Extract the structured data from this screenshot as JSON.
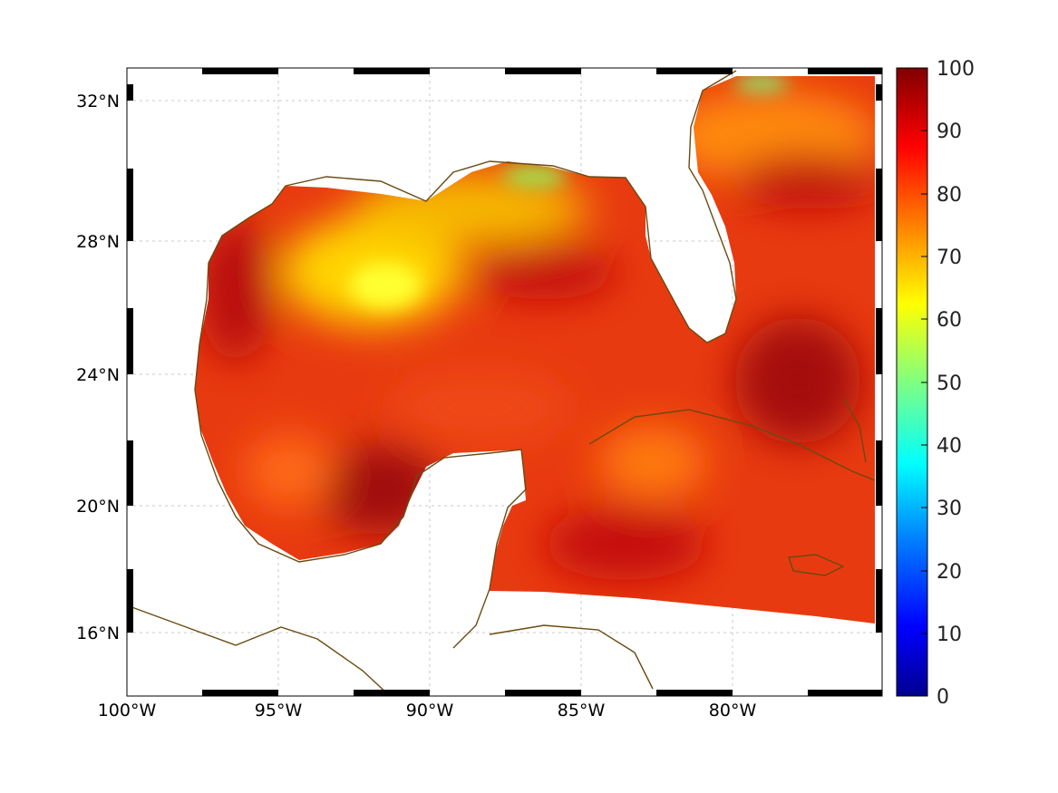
{
  "map": {
    "x_tick_labels": [
      "100°W",
      "95°W",
      "90°W",
      "85°W",
      "80°W"
    ],
    "y_tick_labels": [
      "32°N",
      "28°N",
      "24°N",
      "20°N",
      "16°N"
    ]
  },
  "colorbar": {
    "tick_labels": [
      "100",
      "90",
      "80",
      "70",
      "60",
      "50",
      "40",
      "30",
      "20",
      "10",
      "0"
    ],
    "colors": [
      "#00008f",
      "#0000ff",
      "#0080ff",
      "#00ffff",
      "#80ff80",
      "#ffff00",
      "#ff8000",
      "#ff0000",
      "#800000"
    ]
  },
  "colors": {
    "coastline": "#6b4a10",
    "frame": "#000000",
    "grid": "#bbbbbb"
  }
}
